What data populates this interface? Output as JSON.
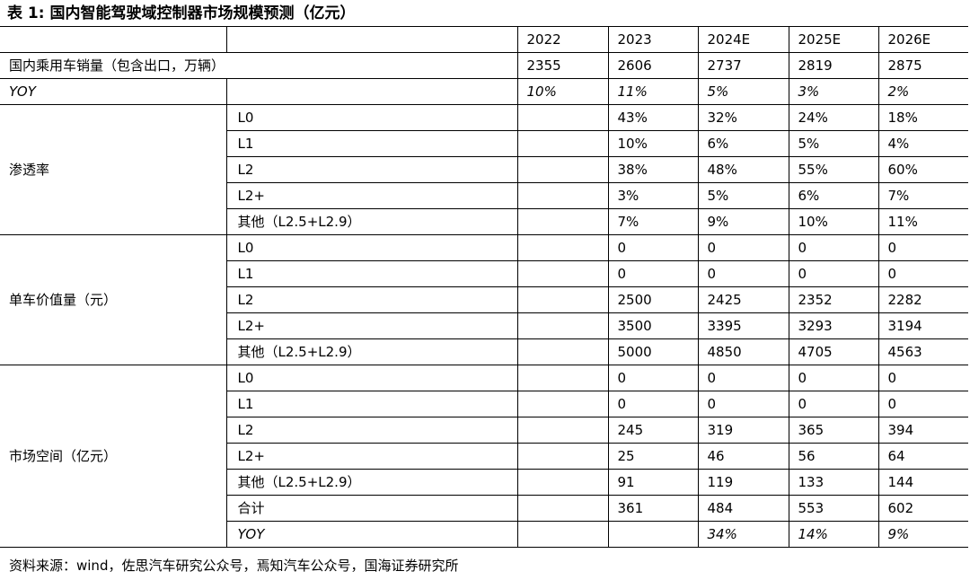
{
  "title": "表 1:  国内智能驾驶域控制器市场规模预测（亿元）",
  "header": {
    "years": [
      "2022",
      "2023",
      "2024E",
      "2025E",
      "2026E"
    ]
  },
  "sales": {
    "label": "国内乘用车销量（包含出口，万辆）",
    "values": [
      "2355",
      "2606",
      "2737",
      "2819",
      "2875"
    ]
  },
  "yoy1": {
    "label": "YOY",
    "values": [
      "10%",
      "11%",
      "5%",
      "3%",
      "2%"
    ]
  },
  "penetration": {
    "group": "渗透率",
    "rows": [
      {
        "label": "L0",
        "values": [
          "",
          "43%",
          "32%",
          "24%",
          "18%"
        ]
      },
      {
        "label": "L1",
        "values": [
          "",
          "10%",
          "6%",
          "5%",
          "4%"
        ]
      },
      {
        "label": "L2",
        "values": [
          "",
          "38%",
          "48%",
          "55%",
          "60%"
        ]
      },
      {
        "label": "L2+",
        "values": [
          "",
          "3%",
          "5%",
          "6%",
          "7%"
        ]
      },
      {
        "label": "其他（L2.5+L2.9）",
        "values": [
          "",
          "7%",
          "9%",
          "10%",
          "11%"
        ]
      }
    ]
  },
  "unit_value": {
    "group": "单车价值量（元）",
    "rows": [
      {
        "label": "L0",
        "values": [
          "",
          "0",
          "0",
          "0",
          "0"
        ]
      },
      {
        "label": "L1",
        "values": [
          "",
          "0",
          "0",
          "0",
          "0"
        ]
      },
      {
        "label": "L2",
        "values": [
          "",
          "2500",
          "2425",
          "2352",
          "2282"
        ]
      },
      {
        "label": "L2+",
        "values": [
          "",
          "3500",
          "3395",
          "3293",
          "3194"
        ]
      },
      {
        "label": "其他（L2.5+L2.9）",
        "values": [
          "",
          "5000",
          "4850",
          "4705",
          "4563"
        ]
      }
    ]
  },
  "market": {
    "group": "市场空间（亿元）",
    "rows": [
      {
        "label": "L0",
        "values": [
          "",
          "0",
          "0",
          "0",
          "0"
        ]
      },
      {
        "label": "L1",
        "values": [
          "",
          "0",
          "0",
          "0",
          "0"
        ]
      },
      {
        "label": "L2",
        "values": [
          "",
          "245",
          "319",
          "365",
          "394"
        ]
      },
      {
        "label": "L2+",
        "values": [
          "",
          "25",
          "46",
          "56",
          "64"
        ]
      },
      {
        "label": "其他（L2.5+L2.9）",
        "values": [
          "",
          "91",
          "119",
          "133",
          "144"
        ]
      },
      {
        "label": "合计",
        "values": [
          "",
          "361",
          "484",
          "553",
          "602"
        ]
      },
      {
        "label": "YOY",
        "values": [
          "",
          "",
          "34%",
          "14%",
          "9%"
        ]
      }
    ]
  },
  "source": "资料来源：wind，佐思汽车研究公众号，焉知汽车公众号，国海证券研究所"
}
